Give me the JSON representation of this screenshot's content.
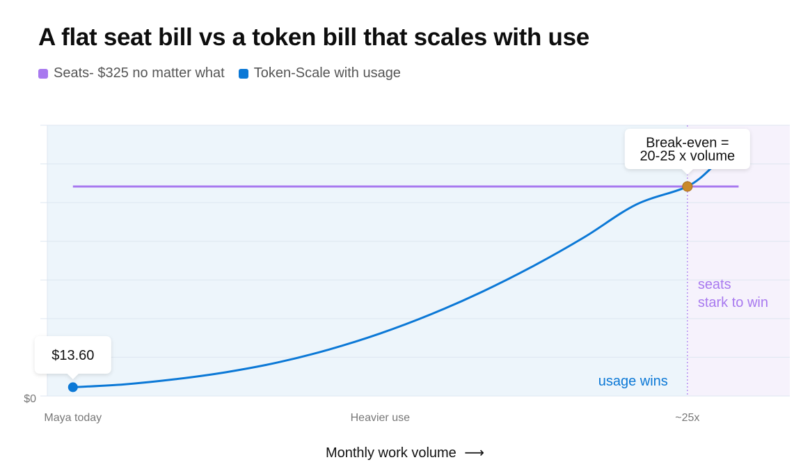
{
  "title": "A flat seat bill vs a token bill that scales with use",
  "legend": [
    {
      "label": "Seats- $325 no matter what",
      "color": "#a879ef"
    },
    {
      "label": "Token-Scale with usage",
      "color": "#0b78d6"
    }
  ],
  "xlabel": "Monthly work volume",
  "xlabel_arrow": "⟶",
  "colors": {
    "seats": "#a879ef",
    "token": "#0b78d6",
    "breakeven": "#c98a2c",
    "usage_region": "#edf5fb",
    "seats_region": "#f6f2fc",
    "grid": "#dde6f0"
  },
  "chart_data": {
    "type": "line",
    "title": "A flat seat bill vs a token bill that scales with use",
    "xlabel": "Monthly work volume",
    "ylabel": "",
    "x_ticks": [
      {
        "label": "Maya today",
        "x": 1
      },
      {
        "label": "Heavier use",
        "x": 13
      },
      {
        "label": "~25x",
        "x": 25
      }
    ],
    "y_ticks": [
      "$0"
    ],
    "xlim": [
      0,
      29
    ],
    "ylim": [
      0,
      420
    ],
    "grid": true,
    "series": [
      {
        "name": "Seats- $325 no matter what",
        "kind": "flat",
        "x": [
          1,
          27
        ],
        "y": [
          325,
          325
        ]
      },
      {
        "name": "Token-Scale with usage",
        "kind": "curve",
        "x": [
          1,
          3,
          5,
          7,
          9,
          11,
          13,
          15,
          17,
          19,
          21,
          23,
          25,
          26
        ],
        "y": [
          13.6,
          18,
          26,
          37,
          52,
          72,
          97,
          127,
          162,
          202,
          247,
          297,
          325,
          356
        ]
      }
    ],
    "annotations": {
      "start_point": {
        "x": 1,
        "y": 13.6,
        "label": "$13.60"
      },
      "breakeven_point": {
        "x": 25,
        "y": 325,
        "label_line1": "Break-even =",
        "label_line2": "20-25 x volume"
      },
      "usage_region_label": "usage wins",
      "seats_region_label_line1": "seats",
      "seats_region_label_line2": "stark to win"
    }
  }
}
